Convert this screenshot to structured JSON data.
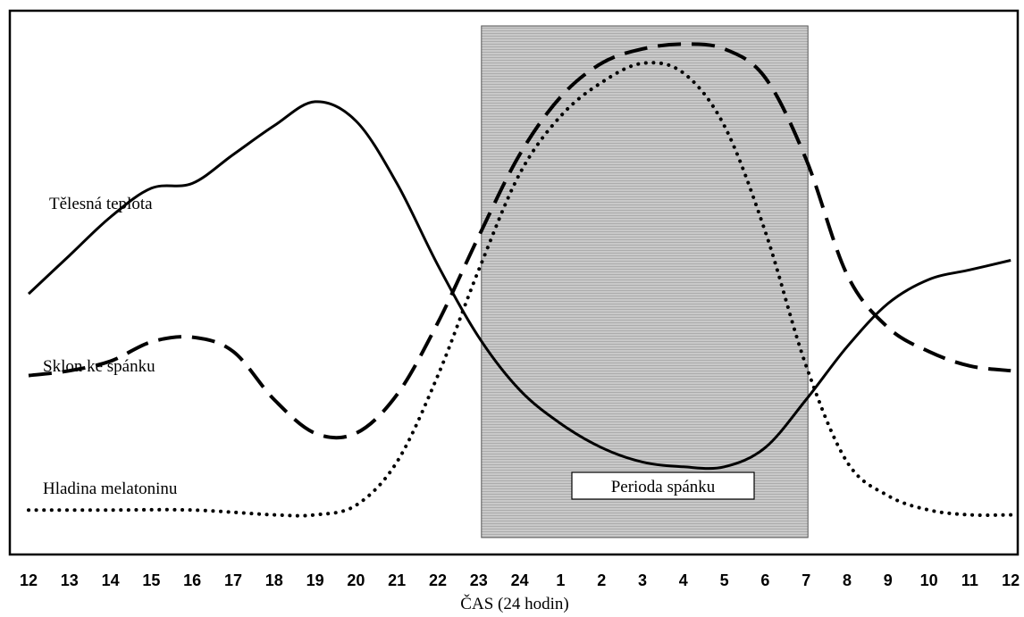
{
  "chart_data": {
    "type": "line",
    "xlabel": "ČAS (24 hodin)",
    "x_ticks": [
      "12",
      "13",
      "14",
      "15",
      "16",
      "17",
      "18",
      "19",
      "20",
      "21",
      "22",
      "23",
      "24",
      "1",
      "2",
      "3",
      "4",
      "5",
      "6",
      "7",
      "8",
      "9",
      "10",
      "11",
      "12"
    ],
    "sleep_period": {
      "label": "Perioda spánku",
      "start_hour": 23,
      "end_hour": 31
    },
    "series": [
      {
        "name": "Tělesná teplota",
        "style": "solid",
        "y_scale": "relative 0-1",
        "points": [
          [
            12,
            0.47
          ],
          [
            13,
            0.55
          ],
          [
            14,
            0.63
          ],
          [
            15,
            0.69
          ],
          [
            16,
            0.7
          ],
          [
            17,
            0.76
          ],
          [
            18,
            0.82
          ],
          [
            19,
            0.87
          ],
          [
            20,
            0.83
          ],
          [
            21,
            0.7
          ],
          [
            22,
            0.53
          ],
          [
            23,
            0.38
          ],
          [
            24,
            0.27
          ],
          [
            25,
            0.2
          ],
          [
            26,
            0.15
          ],
          [
            27,
            0.12
          ],
          [
            28,
            0.11
          ],
          [
            29,
            0.11
          ],
          [
            30,
            0.15
          ],
          [
            31,
            0.25
          ],
          [
            32,
            0.36
          ],
          [
            33,
            0.45
          ],
          [
            34,
            0.5
          ],
          [
            35,
            0.52
          ],
          [
            36,
            0.54
          ]
        ]
      },
      {
        "name": "Sklon ke spánku",
        "style": "dashed",
        "y_scale": "relative 0-1",
        "points": [
          [
            12,
            0.3
          ],
          [
            13,
            0.31
          ],
          [
            14,
            0.33
          ],
          [
            15,
            0.37
          ],
          [
            16,
            0.38
          ],
          [
            17,
            0.35
          ],
          [
            18,
            0.25
          ],
          [
            19,
            0.18
          ],
          [
            20,
            0.18
          ],
          [
            21,
            0.26
          ],
          [
            22,
            0.41
          ],
          [
            23,
            0.59
          ],
          [
            24,
            0.76
          ],
          [
            25,
            0.88
          ],
          [
            26,
            0.95
          ],
          [
            27,
            0.98
          ],
          [
            28,
            0.99
          ],
          [
            29,
            0.98
          ],
          [
            30,
            0.92
          ],
          [
            31,
            0.75
          ],
          [
            32,
            0.51
          ],
          [
            33,
            0.4
          ],
          [
            34,
            0.35
          ],
          [
            35,
            0.32
          ],
          [
            36,
            0.31
          ]
        ]
      },
      {
        "name": "Hladina melatoninu",
        "style": "dotted",
        "y_scale": "relative 0-1",
        "points": [
          [
            12,
            0.02
          ],
          [
            14,
            0.02
          ],
          [
            16,
            0.02
          ],
          [
            18,
            0.01
          ],
          [
            19,
            0.01
          ],
          [
            20,
            0.03
          ],
          [
            21,
            0.12
          ],
          [
            22,
            0.3
          ],
          [
            23,
            0.52
          ],
          [
            24,
            0.72
          ],
          [
            25,
            0.84
          ],
          [
            26,
            0.91
          ],
          [
            27,
            0.95
          ],
          [
            28,
            0.93
          ],
          [
            29,
            0.82
          ],
          [
            30,
            0.6
          ],
          [
            31,
            0.32
          ],
          [
            32,
            0.12
          ],
          [
            33,
            0.05
          ],
          [
            34,
            0.02
          ],
          [
            35,
            0.01
          ],
          [
            36,
            0.01
          ]
        ]
      }
    ],
    "series_labels": [
      "Tělesná teplota",
      "Sklon ke spánku",
      "Hladina melatoninu"
    ],
    "grid": false
  }
}
